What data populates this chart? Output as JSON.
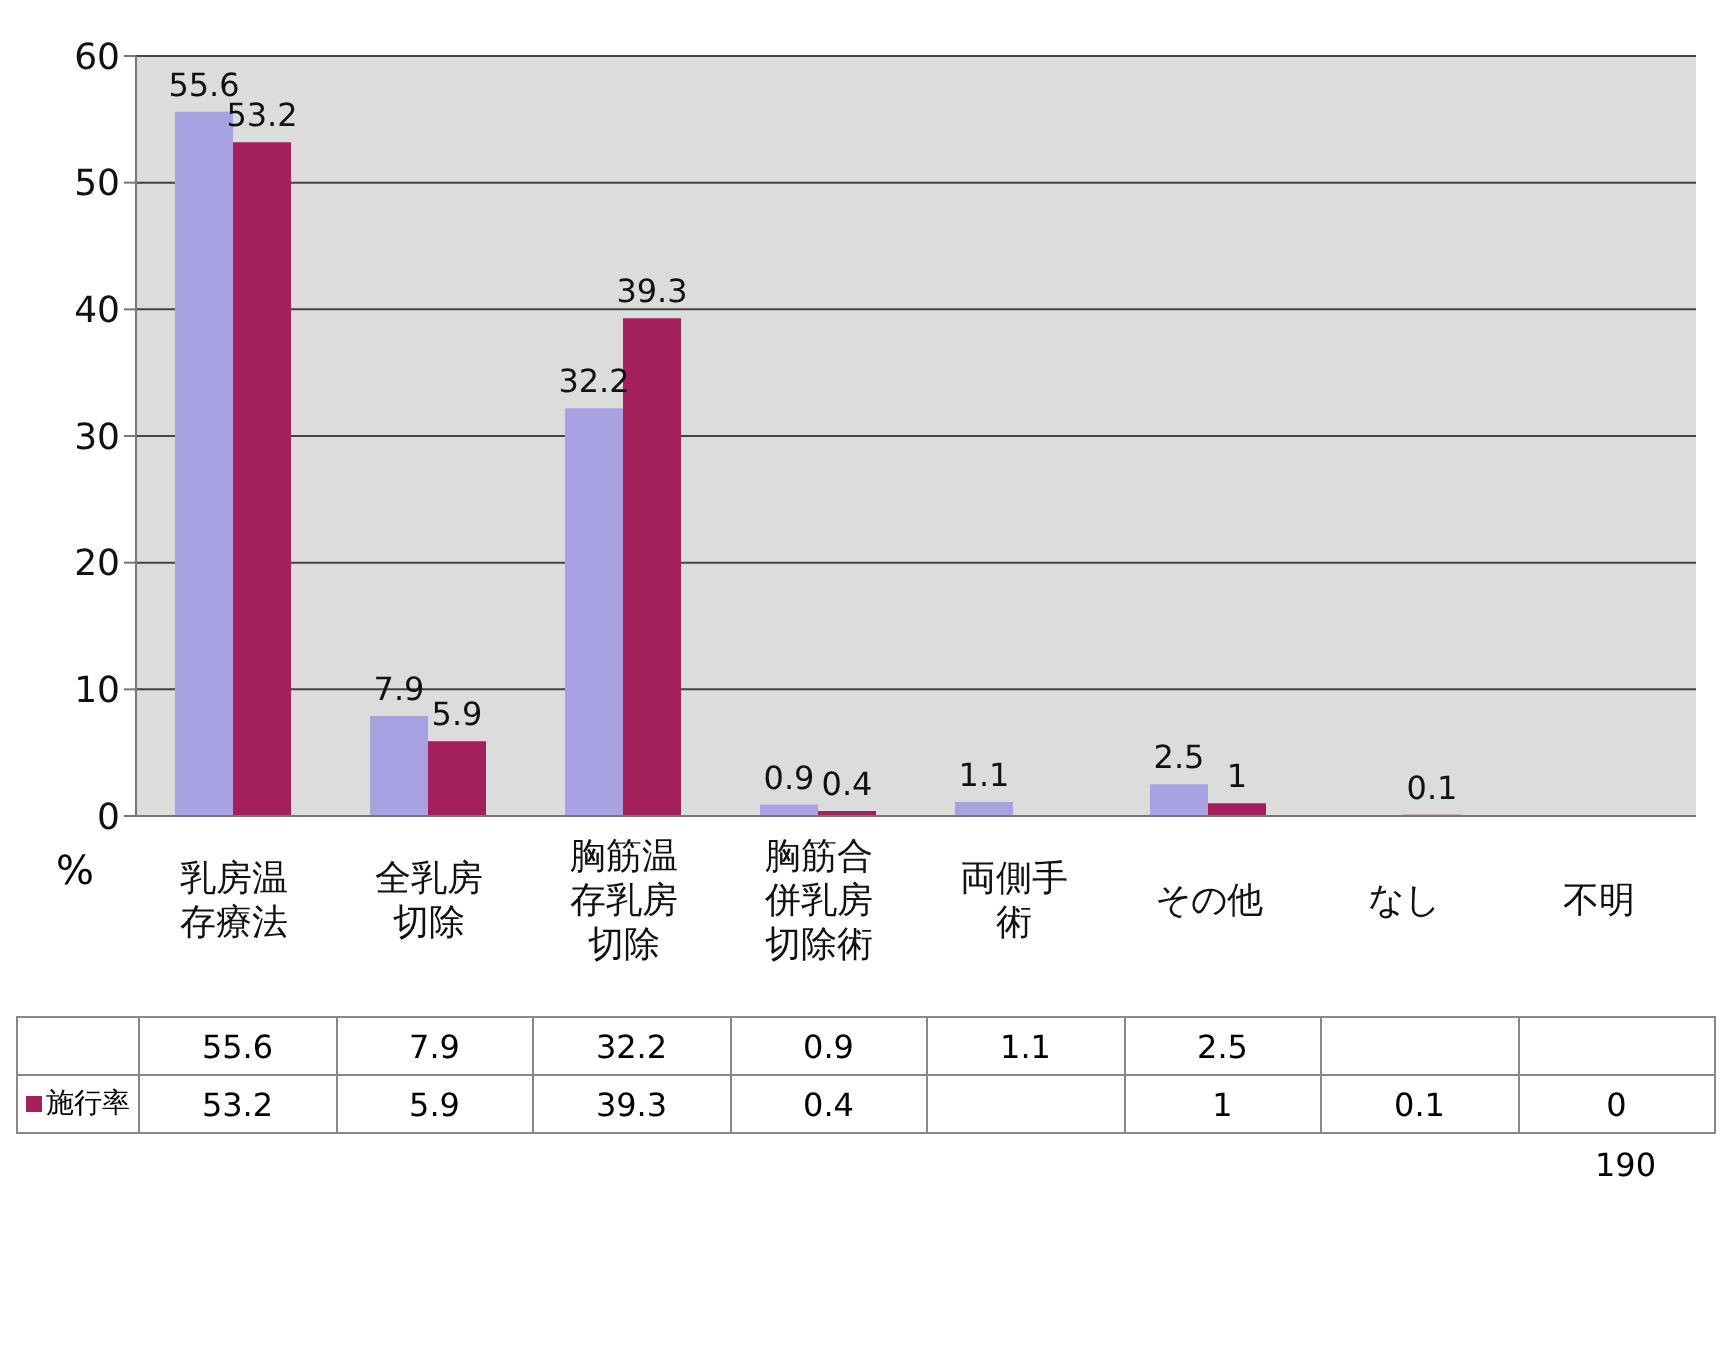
{
  "chart_data": {
    "type": "bar",
    "ylabel": "%",
    "categories": [
      "乳房温存療法",
      "全乳房切除",
      "胸筋温存乳房切除",
      "胸筋合併乳房切除術",
      "両側手術",
      "その他",
      "なし",
      "不明"
    ],
    "series": [
      {
        "color": "#a9a2e2",
        "values": [
          55.6,
          7.9,
          32.2,
          0.9,
          1.1,
          2.5,
          null,
          null
        ],
        "value_labels": [
          "55.6",
          "7.9",
          "32.2",
          "0.9",
          "1.1",
          "2.5",
          null,
          null
        ]
      },
      {
        "name": "施行率",
        "color": "#a3205c",
        "values": [
          53.2,
          5.9,
          39.3,
          0.4,
          null,
          1,
          0.1,
          0
        ],
        "value_labels": [
          "53.2",
          "5.9",
          "39.3",
          "0.4",
          null,
          "1",
          "0.1",
          "0"
        ]
      }
    ],
    "ylim": [
      0,
      60
    ],
    "yticks": [
      0,
      10,
      20,
      30,
      40,
      50,
      60
    ],
    "grid": "y",
    "legend": "bottom left",
    "annotations": [
      "190"
    ]
  }
}
